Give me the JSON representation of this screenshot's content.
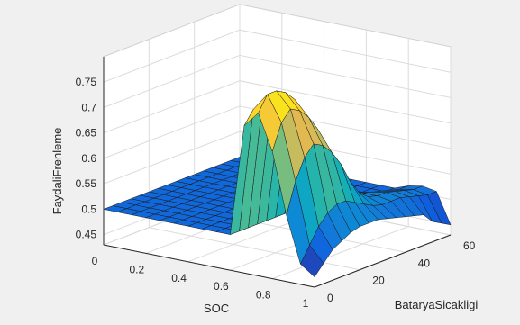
{
  "chart_data": {
    "type": "surface",
    "title": "",
    "xlabel": "SOC",
    "ylabel": "BataryaSicakligi",
    "zlabel": "FaydaliFrenleme",
    "xlim": [
      0,
      1
    ],
    "ylim": [
      0,
      60
    ],
    "zlim": [
      0.43,
      0.8
    ],
    "x_ticks": [
      "0",
      "0.2",
      "0.4",
      "0.6",
      "0.8",
      "1"
    ],
    "y_ticks": [
      "0",
      "20",
      "40",
      "60"
    ],
    "z_ticks": [
      "0.45",
      "0.5",
      "0.55",
      "0.6",
      "0.65",
      "0.7",
      "0.75"
    ],
    "grid": true,
    "colormap": "parula",
    "x": [
      0,
      0.0667,
      0.1333,
      0.2,
      0.2667,
      0.3333,
      0.4,
      0.4667,
      0.5333,
      0.6,
      0.6667,
      0.7333,
      0.8,
      0.8667,
      0.9333,
      1
    ],
    "y": [
      0,
      4,
      8,
      12,
      16,
      20,
      24,
      28,
      32,
      36,
      40,
      44,
      48,
      52,
      56,
      60
    ],
    "z": [
      [
        0.5,
        0.5,
        0.5,
        0.5,
        0.5,
        0.5,
        0.5,
        0.5,
        0.5,
        0.5,
        0.5,
        0.5,
        0.5,
        0.5,
        0.5,
        0.5
      ],
      [
        0.5,
        0.5,
        0.5,
        0.5,
        0.5,
        0.5,
        0.5,
        0.5,
        0.5,
        0.5,
        0.5,
        0.5,
        0.5,
        0.5,
        0.5,
        0.5
      ],
      [
        0.5,
        0.5,
        0.5,
        0.5,
        0.5,
        0.5,
        0.5,
        0.5,
        0.5,
        0.5,
        0.5,
        0.5,
        0.5,
        0.5,
        0.5,
        0.5
      ],
      [
        0.5,
        0.5,
        0.5,
        0.5,
        0.5,
        0.5,
        0.5,
        0.5,
        0.5,
        0.5,
        0.5,
        0.5,
        0.5,
        0.5,
        0.5,
        0.5
      ],
      [
        0.5,
        0.5,
        0.5,
        0.5,
        0.5,
        0.5,
        0.5,
        0.5,
        0.5,
        0.5,
        0.5,
        0.5,
        0.5,
        0.5,
        0.5,
        0.5
      ],
      [
        0.5,
        0.5,
        0.5,
        0.5,
        0.5,
        0.5,
        0.5,
        0.5,
        0.5,
        0.5,
        0.5,
        0.5,
        0.5,
        0.5,
        0.5,
        0.5
      ],
      [
        0.5,
        0.5,
        0.5,
        0.5,
        0.5,
        0.5,
        0.5,
        0.5,
        0.5,
        0.5,
        0.5,
        0.5,
        0.5,
        0.5,
        0.5,
        0.5
      ],
      [
        0.5,
        0.5,
        0.5,
        0.5,
        0.5,
        0.5,
        0.5,
        0.5,
        0.5,
        0.5,
        0.5,
        0.5,
        0.5,
        0.5,
        0.5,
        0.5
      ],
      [
        0.5,
        0.5,
        0.5,
        0.5,
        0.5,
        0.5,
        0.5,
        0.5,
        0.5,
        0.5,
        0.5,
        0.5,
        0.5,
        0.5,
        0.5,
        0.5
      ],
      [
        0.5,
        0.5,
        0.5,
        0.5,
        0.5,
        0.5,
        0.5,
        0.5,
        0.5,
        0.5,
        0.5,
        0.5,
        0.5,
        0.5,
        0.5,
        0.5
      ],
      [
        0.72,
        0.745,
        0.75,
        0.74,
        0.73,
        0.7,
        0.66,
        0.6,
        0.56,
        0.53,
        0.51,
        0.5,
        0.5,
        0.5,
        0.5,
        0.5
      ],
      [
        0.75,
        0.78,
        0.78,
        0.77,
        0.75,
        0.72,
        0.68,
        0.62,
        0.57,
        0.535,
        0.52,
        0.515,
        0.51,
        0.505,
        0.5,
        0.5
      ],
      [
        0.68,
        0.73,
        0.75,
        0.74,
        0.72,
        0.69,
        0.65,
        0.6,
        0.56,
        0.54,
        0.53,
        0.525,
        0.52,
        0.515,
        0.51,
        0.51
      ],
      [
        0.56,
        0.62,
        0.66,
        0.68,
        0.67,
        0.65,
        0.62,
        0.58,
        0.55,
        0.535,
        0.53,
        0.53,
        0.525,
        0.52,
        0.515,
        0.515
      ],
      [
        0.47,
        0.5,
        0.53,
        0.55,
        0.56,
        0.56,
        0.55,
        0.54,
        0.53,
        0.525,
        0.525,
        0.525,
        0.52,
        0.515,
        0.51,
        0.51
      ],
      [
        0.45,
        0.47,
        0.49,
        0.5,
        0.51,
        0.515,
        0.515,
        0.515,
        0.51,
        0.505,
        0.5,
        0.495,
        0.49,
        0.47,
        0.46,
        0.45
      ]
    ]
  }
}
